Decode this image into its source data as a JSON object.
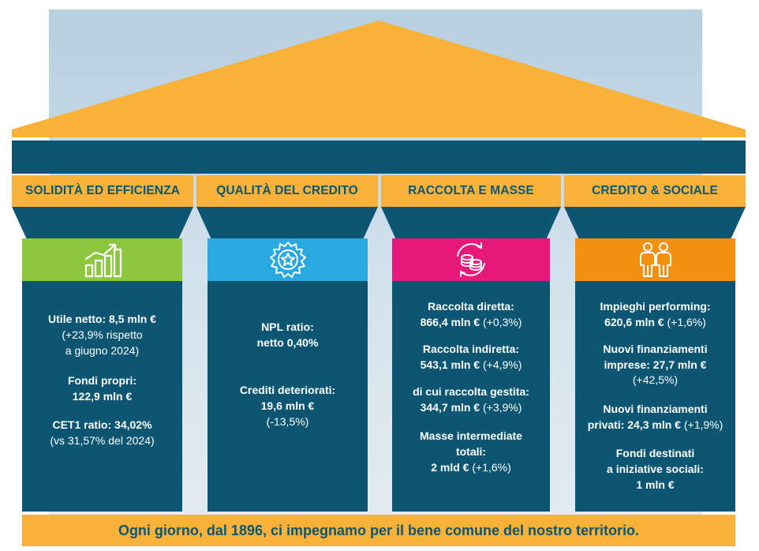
{
  "columns": [
    {
      "title": "SOLIDITÀ ED EFFICIENZA",
      "band_color": "#8dc63f",
      "icon": "growth-chart-icon",
      "lines": [
        {
          "bold": "Utile netto: 8,5 mln €"
        },
        {
          "normal": "(+23,9% rispetto"
        },
        {
          "normal": "a giugno 2024)"
        },
        {
          "bold": "Fondi propri:"
        },
        {
          "bold": "122,9 mln €"
        },
        {
          "bold": "CET1 ratio: 34,02%"
        },
        {
          "normal": "(vs 31,57% del 2024)"
        }
      ]
    },
    {
      "title": "QUALITÀ DEL CREDITO",
      "band_color": "#2aa8e0",
      "icon": "quality-badge-icon",
      "lines": [
        {
          "bold": "NPL ratio:"
        },
        {
          "bold": "netto 0,40%"
        },
        {
          "bold": "Crediti deteriorati:"
        },
        {
          "bold": "19,6 mln €"
        },
        {
          "normal": "(-13,5%)"
        }
      ]
    },
    {
      "title": "RACCOLTA E MASSE",
      "band_color": "#e6197b",
      "icon": "coins-cycle-icon",
      "lines": [
        {
          "bold": "Raccolta diretta:"
        },
        {
          "bold": "866,4 mln €",
          "normal": " (+0,3%)"
        },
        {
          "bold": "Raccolta indiretta:"
        },
        {
          "bold": "543,1 mln €",
          "normal": " (+4,9%)"
        },
        {
          "bold": "di cui raccolta gestita:"
        },
        {
          "bold": "344,7 mln €",
          "normal": " (+3,9%)"
        },
        {
          "bold": "Masse intermediate"
        },
        {
          "bold": "totali:"
        },
        {
          "bold": "2 mld €",
          "normal": " (+1,6%)"
        }
      ]
    },
    {
      "title": "CREDITO & SOCIALE",
      "band_color": "#f29111",
      "icon": "people-icon",
      "lines": [
        {
          "bold": "Impieghi performing:"
        },
        {
          "bold": "620,6 mln €",
          "normal": " (+1,6%)"
        },
        {
          "bold": "Nuovi finanziamenti"
        },
        {
          "bold": "imprese: 27,7 mln €"
        },
        {
          "normal": "(+42,5%)"
        },
        {
          "bold": "Nuovi finanziamenti"
        },
        {
          "bold": "privati: 24,3 mln €",
          "normal": " (+1,9%)"
        },
        {
          "bold": "Fondi destinati"
        },
        {
          "bold": "a iniziative sociali:"
        },
        {
          "bold": "1 mln €"
        }
      ]
    }
  ],
  "footer": "Ogni giorno, dal 1896, ci impegnamo per il bene comune del nostro territorio.",
  "colors": {
    "roof": "#f8b23a",
    "pillar": "#0c5674",
    "text_dark": "#0c5674"
  }
}
